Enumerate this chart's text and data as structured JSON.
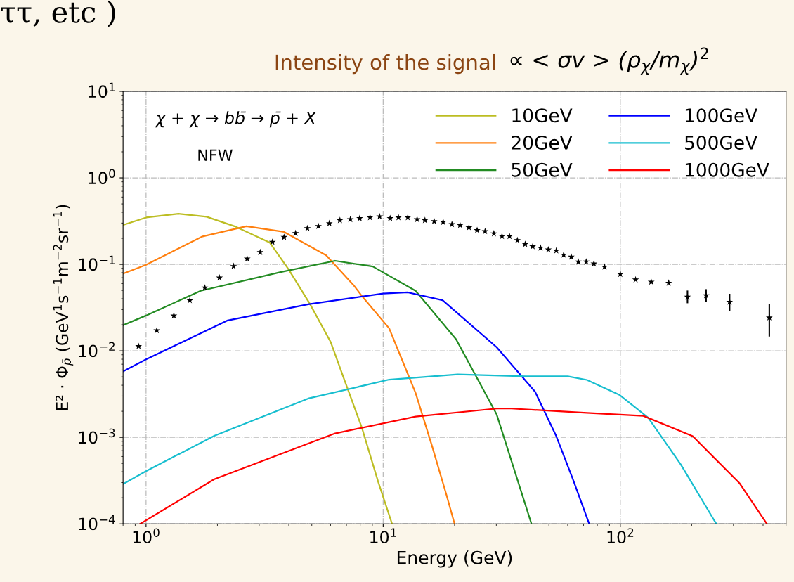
{
  "chart_data": {
    "type": "line",
    "xlabel": "Energy (GeV)",
    "ylabel": "E² · Φ$_{p̄}$ (GeV$^{1}$s$^{−1}$m$^{−2}$sr$^{−1}$)",
    "annotations": [
      "ττ, etc )",
      "Intensity of the signal",
      "∝ < σv > (ρ$_{χ}$/m$_{χ}$)$^{2}$",
      "χ + χ → bb̄ → p̄ + X",
      "NFW"
    ],
    "log": "xy",
    "xlim": [
      0.8,
      500
    ],
    "ylim": [
      0.0001,
      10
    ],
    "xticks": [
      {
        "value": 1,
        "label": "10$^{0}$"
      },
      {
        "value": 10,
        "label": "10$^{1}$"
      },
      {
        "value": 100,
        "label": "10$^{2}$"
      }
    ],
    "yticks": [
      {
        "value": 0.0001,
        "label": "10$^{−4}$"
      },
      {
        "value": 0.001,
        "label": "10$^{−3}$"
      },
      {
        "value": 0.01,
        "label": "10$^{−2}$"
      },
      {
        "value": 0.1,
        "label": "10$^{−1}$"
      },
      {
        "value": 1,
        "label": "10$^{0}$"
      },
      {
        "value": 10,
        "label": "10$^{1}$"
      }
    ],
    "grid": true,
    "legend": "top right",
    "line_style": "solid",
    "series": [
      {
        "name": "10GeV",
        "color": "#bcbd22",
        "x": [
          0.8,
          1.0,
          1.37,
          1.8,
          2.36,
          3.32,
          3.99,
          4.9,
          6.01,
          6.8,
          8.14,
          9.53,
          10.9
        ],
        "values": [
          0.285,
          0.348,
          0.385,
          0.355,
          0.276,
          0.179,
          0.0877,
          0.0352,
          0.0126,
          0.00494,
          0.00128,
          0.000305,
          0.0001
        ]
      },
      {
        "name": "20GeV",
        "color": "#ff7f0e",
        "x": [
          0.8,
          1.0,
          1.72,
          2.65,
          3.82,
          5.75,
          7.55,
          8.14,
          10.6,
          13.7,
          16.1,
          18.5,
          20.0
        ],
        "values": [
          0.078,
          0.0989,
          0.209,
          0.276,
          0.237,
          0.127,
          0.0562,
          0.0429,
          0.0182,
          0.00325,
          0.00078,
          0.000214,
          0.0001
        ]
      },
      {
        "name": "50GeV",
        "color": "#228b22",
        "x": [
          0.8,
          1.0,
          1.7,
          3.72,
          6.27,
          9.04,
          13.7,
          20.3,
          30.1,
          42.2
        ],
        "values": [
          0.0198,
          0.0256,
          0.0494,
          0.0817,
          0.11,
          0.0944,
          0.0494,
          0.0136,
          0.00184,
          0.0001
        ]
      },
      {
        "name": "100GeV",
        "color": "#0000ff",
        "x": [
          0.8,
          1.0,
          2.21,
          4.83,
          10,
          12.7,
          17.8,
          30.1,
          43.7,
          53.7,
          63.0,
          73.9
        ],
        "values": [
          0.00577,
          0.00796,
          0.0225,
          0.0346,
          0.046,
          0.0474,
          0.0385,
          0.011,
          0.00337,
          0.00103,
          0.000332,
          0.0001
        ]
      },
      {
        "name": "500GeV",
        "color": "#17becf",
        "x": [
          0.8,
          1.0,
          1.94,
          4.83,
          10.6,
          20.6,
          39.9,
          60.1,
          72.3,
          99.5,
          131,
          180,
          254
        ],
        "values": [
          0.000288,
          0.000407,
          0.00104,
          0.00281,
          0.00465,
          0.00535,
          0.00508,
          0.00508,
          0.00461,
          0.00308,
          0.00169,
          0.000484,
          0.0001
        ]
      },
      {
        "name": "1000GeV",
        "color": "#ff0000",
        "x": [
          0.945,
          1.94,
          6.27,
          13.7,
          30.1,
          34.8,
          72.3,
          125,
          202,
          319,
          415
        ],
        "values": [
          0.0001,
          0.000328,
          0.00111,
          0.00174,
          0.00215,
          0.00215,
          0.00192,
          0.00177,
          0.00103,
          0.000293,
          0.0001
        ]
      },
      {
        "type": "scatter",
        "marker": "star",
        "color": "#000000",
        "x": [
          0.93,
          1.11,
          1.31,
          1.53,
          1.77,
          2.04,
          2.34,
          2.67,
          3.03,
          3.41,
          3.82,
          4.27,
          4.79,
          5.33,
          5.93,
          6.57,
          7.27,
          7.96,
          8.8,
          9.66,
          10.7,
          11.6,
          12.7,
          13.9,
          15.0,
          16.4,
          17.9,
          19.5,
          21.1,
          23.0,
          24.9,
          26.9,
          29.3,
          31.7,
          34.1,
          36.8,
          39.7,
          42.7,
          46.1,
          49.7,
          53.7,
          57.7,
          62.1,
          66.5,
          71.8,
          77.4,
          85.8,
          100,
          116,
          135,
          160,
          192,
          230,
          289,
          425
        ],
        "values": [
          0.0113,
          0.0172,
          0.0255,
          0.0383,
          0.0536,
          0.0701,
          0.0951,
          0.116,
          0.138,
          0.181,
          0.206,
          0.229,
          0.261,
          0.276,
          0.298,
          0.323,
          0.331,
          0.34,
          0.348,
          0.357,
          0.34,
          0.348,
          0.348,
          0.331,
          0.323,
          0.315,
          0.308,
          0.29,
          0.284,
          0.267,
          0.248,
          0.241,
          0.227,
          0.211,
          0.211,
          0.19,
          0.171,
          0.161,
          0.155,
          0.148,
          0.144,
          0.129,
          0.122,
          0.107,
          0.107,
          0.102,
          0.0935,
          0.0771,
          0.0665,
          0.0627,
          0.061,
          0.0421,
          0.0437,
          0.0368,
          0.0242
        ],
        "errors": [
          null,
          null,
          null,
          null,
          null,
          null,
          null,
          null,
          null,
          null,
          null,
          null,
          null,
          null,
          null,
          null,
          null,
          null,
          null,
          null,
          null,
          null,
          null,
          null,
          null,
          null,
          null,
          null,
          null,
          null,
          null,
          null,
          null,
          null,
          null,
          null,
          null,
          null,
          null,
          null,
          null,
          null,
          null,
          null,
          null,
          null,
          null,
          null,
          null,
          null,
          null,
          [
            0.0362,
            0.0488
          ],
          [
            0.0377,
            0.0506
          ],
          [
            0.0295,
            0.0447
          ],
          [
            0.0149,
            0.0341
          ]
        ]
      }
    ]
  }
}
